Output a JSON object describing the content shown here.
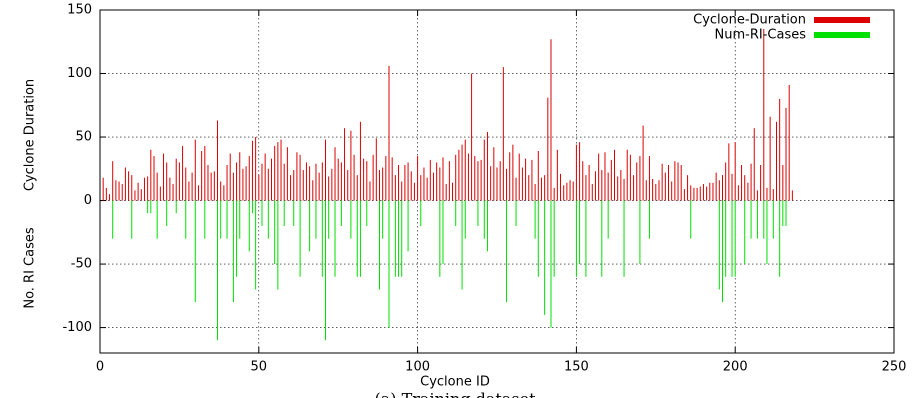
{
  "chart_data": {
    "type": "impulse",
    "x_label": "Cyclone ID",
    "y_labels": [
      "Cyclone Duration",
      "No. RI Cases"
    ],
    "caption": "(a) Training dataset",
    "x": [
      0,
      1,
      2,
      3,
      4,
      5,
      6,
      7,
      8,
      9,
      10,
      11,
      12,
      13,
      14,
      15,
      16,
      17,
      18,
      19,
      20,
      21,
      22,
      23,
      24,
      25,
      26,
      27,
      28,
      29,
      30,
      31,
      32,
      33,
      34,
      35,
      36,
      37,
      38,
      39,
      40,
      41,
      42,
      43,
      44,
      45,
      46,
      47,
      48,
      49,
      50,
      51,
      52,
      53,
      54,
      55,
      56,
      57,
      58,
      59,
      60,
      61,
      62,
      63,
      64,
      65,
      66,
      67,
      68,
      69,
      70,
      71,
      72,
      73,
      74,
      75,
      76,
      77,
      78,
      79,
      80,
      81,
      82,
      83,
      84,
      85,
      86,
      87,
      88,
      89,
      90,
      91,
      92,
      93,
      94,
      95,
      96,
      97,
      98,
      99,
      100,
      101,
      102,
      103,
      104,
      105,
      106,
      107,
      108,
      109,
      110,
      111,
      112,
      113,
      114,
      115,
      116,
      117,
      118,
      119,
      120,
      121,
      122,
      123,
      124,
      125,
      126,
      127,
      128,
      129,
      130,
      131,
      132,
      133,
      134,
      135,
      136,
      137,
      138,
      139,
      140,
      141,
      142,
      143,
      144,
      145,
      146,
      147,
      148,
      149,
      150,
      151,
      152,
      153,
      154,
      155,
      156,
      157,
      158,
      159,
      160,
      161,
      162,
      163,
      164,
      165,
      166,
      167,
      168,
      169,
      170,
      171,
      172,
      173,
      174,
      175,
      176,
      177,
      178,
      179,
      180,
      181,
      182,
      183,
      184,
      185,
      186,
      187,
      188,
      189,
      190,
      191,
      192,
      193,
      194,
      195,
      196,
      197,
      198,
      199,
      200,
      201,
      202,
      203,
      204,
      205,
      206,
      207,
      208,
      209,
      210,
      211,
      212,
      213,
      214,
      215,
      216,
      217,
      218
    ],
    "series": [
      {
        "name": "Cyclone-Duration",
        "color": "#dd0000",
        "values": [
          27,
          18,
          10,
          5,
          31,
          16,
          15,
          13,
          26,
          23,
          20,
          8,
          14,
          9,
          18,
          19,
          40,
          35,
          22,
          11,
          37,
          30,
          18,
          13,
          33,
          30,
          43,
          26,
          15,
          22,
          48,
          12,
          39,
          43,
          28,
          22,
          23,
          63,
          15,
          12,
          28,
          37,
          22,
          30,
          38,
          25,
          27,
          35,
          47,
          50,
          20,
          29,
          37,
          25,
          33,
          43,
          46,
          48,
          29,
          42,
          20,
          24,
          38,
          36,
          24,
          30,
          27,
          16,
          29,
          22,
          30,
          48,
          19,
          25,
          42,
          33,
          30,
          57,
          24,
          55,
          36,
          20,
          62,
          33,
          31,
          15,
          36,
          49,
          24,
          26,
          35,
          106,
          34,
          20,
          28,
          15,
          28,
          30,
          23,
          14,
          35,
          20,
          26,
          18,
          32,
          22,
          30,
          26,
          34,
          13,
          31,
          14,
          36,
          40,
          44,
          48,
          37,
          100,
          35,
          31,
          32,
          48,
          54,
          27,
          42,
          26,
          31,
          105,
          25,
          38,
          44,
          18,
          37,
          26,
          33,
          20,
          32,
          13,
          39,
          18,
          20,
          81,
          127,
          10,
          40,
          21,
          12,
          14,
          16,
          15,
          44,
          46,
          31,
          20,
          28,
          13,
          23,
          37,
          24,
          38,
          22,
          32,
          40,
          19,
          24,
          17,
          40,
          36,
          20,
          30,
          35,
          59,
          16,
          35,
          17,
          13,
          16,
          29,
          22,
          28,
          15,
          31,
          30,
          28,
          9,
          20,
          12,
          10,
          10,
          11,
          13,
          11,
          14,
          14,
          22,
          16,
          20,
          30,
          45,
          21,
          46,
          12,
          28,
          20,
          14,
          29,
          57,
          8,
          28,
          135,
          10,
          66,
          9,
          62,
          80,
          28,
          73,
          91,
          8
        ]
      },
      {
        "name": "Num-RI-Cases",
        "color": "#00e000",
        "values": [
          0,
          0,
          0,
          0,
          -30,
          0,
          0,
          0,
          0,
          0,
          -30,
          0,
          0,
          0,
          0,
          -10,
          -10,
          0,
          -30,
          0,
          0,
          -20,
          0,
          0,
          -10,
          0,
          0,
          -30,
          0,
          0,
          -80,
          0,
          0,
          -30,
          0,
          0,
          0,
          -110,
          -30,
          0,
          -30,
          0,
          -80,
          -60,
          -30,
          0,
          0,
          -40,
          -10,
          -70,
          0,
          -20,
          0,
          -30,
          0,
          -50,
          -70,
          0,
          -20,
          0,
          0,
          -20,
          0,
          -60,
          0,
          0,
          -40,
          0,
          -30,
          0,
          -60,
          -110,
          -30,
          0,
          -60,
          0,
          -20,
          0,
          0,
          -30,
          0,
          -60,
          -60,
          0,
          -20,
          0,
          0,
          0,
          -70,
          -30,
          0,
          -100,
          0,
          -60,
          -60,
          -60,
          0,
          -40,
          0,
          0,
          0,
          -20,
          0,
          0,
          0,
          0,
          0,
          -60,
          -50,
          0,
          0,
          0,
          -20,
          0,
          -70,
          -30,
          0,
          0,
          0,
          -20,
          0,
          -30,
          -40,
          0,
          0,
          0,
          0,
          0,
          -80,
          0,
          0,
          -20,
          0,
          0,
          0,
          0,
          0,
          -30,
          -60,
          0,
          -90,
          0,
          -100,
          -60,
          0,
          0,
          0,
          0,
          0,
          0,
          -60,
          -50,
          0,
          -60,
          0,
          0,
          0,
          0,
          -60,
          0,
          -30,
          0,
          0,
          0,
          0,
          -60,
          0,
          0,
          0,
          0,
          -50,
          0,
          0,
          -30,
          0,
          0,
          0,
          0,
          0,
          0,
          0,
          0,
          0,
          0,
          0,
          0,
          -30,
          0,
          0,
          0,
          0,
          0,
          0,
          0,
          0,
          -70,
          -80,
          -60,
          0,
          -60,
          -60,
          0,
          0,
          -50,
          0,
          -30,
          0,
          -30,
          0,
          -30,
          -50,
          0,
          -30,
          0,
          -60,
          -20,
          -20,
          0,
          0
        ]
      }
    ],
    "xlim": [
      0,
      250
    ],
    "xticks": [
      0,
      50,
      100,
      150,
      200,
      250
    ],
    "ylim": [
      -120,
      150
    ],
    "yticks": [
      -100,
      -50,
      0,
      50,
      100,
      150
    ],
    "grid": true,
    "legend": "top-right"
  }
}
